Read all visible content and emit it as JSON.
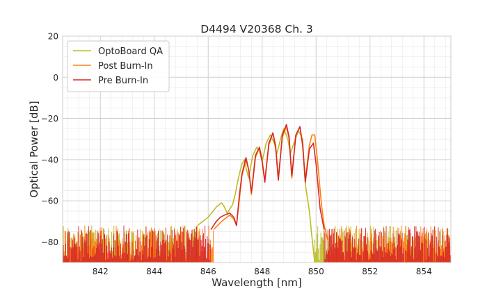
{
  "chart_data": {
    "type": "line",
    "title": "D4494 V20368 Ch. 3",
    "xlabel": "Wavelength [nm]",
    "ylabel": "Optical Power [dB]",
    "xlim": [
      840.6,
      855.0
    ],
    "ylim": [
      -90,
      20
    ],
    "xticks": [
      842,
      844,
      846,
      848,
      850,
      852,
      854
    ],
    "yticks": [
      20,
      0,
      -20,
      -40,
      -60,
      -80
    ],
    "minor_x_step": 0.4,
    "minor_y_step": 5,
    "grid": true,
    "legend_position": "top-left",
    "noise_floor": [
      -90,
      -72
    ],
    "series": [
      {
        "name": "OptoBoard QA",
        "color": "#bcbd22",
        "x": [
          845.6,
          846.0,
          846.3,
          846.5,
          846.6,
          846.7,
          846.9,
          847.0,
          847.1,
          847.25,
          847.35,
          847.4,
          847.5,
          847.65,
          847.8,
          847.9,
          848.0,
          848.15,
          848.3,
          848.45,
          848.55,
          848.7,
          848.8,
          848.95,
          849.05,
          849.2,
          849.35,
          849.5,
          849.6,
          849.75,
          849.85,
          849.95
        ],
        "y": [
          -72,
          -68,
          -63,
          -61,
          -63,
          -66,
          -62,
          -57,
          -50,
          -42,
          -40,
          -44,
          -49,
          -38,
          -34,
          -36,
          -41,
          -32,
          -28,
          -32,
          -37,
          -29,
          -25,
          -30,
          -37,
          -31,
          -26,
          -30,
          -52,
          -65,
          -78,
          -90
        ]
      },
      {
        "name": "Post Burn-In",
        "color": "#ff7f0e",
        "x": [
          846.2,
          846.5,
          846.8,
          846.95,
          847.05,
          847.15,
          847.25,
          847.4,
          847.5,
          847.6,
          847.75,
          847.9,
          848.0,
          848.1,
          848.25,
          848.4,
          848.5,
          848.6,
          848.75,
          848.9,
          849.0,
          849.1,
          849.25,
          849.4,
          849.5,
          849.6,
          849.75,
          849.85,
          849.95,
          850.05,
          850.2,
          850.3,
          850.45
        ],
        "y": [
          -74,
          -70,
          -67,
          -69,
          -72,
          -60,
          -48,
          -40,
          -45,
          -57,
          -39,
          -34,
          -40,
          -50,
          -33,
          -27,
          -33,
          -49,
          -29,
          -24,
          -30,
          -49,
          -28,
          -24,
          -32,
          -50,
          -33,
          -28,
          -28,
          -40,
          -62,
          -72,
          -80
        ]
      },
      {
        "name": "Pre Burn-In",
        "color": "#d62728",
        "x": [
          846.1,
          846.3,
          846.45,
          846.6,
          846.8,
          846.95,
          847.05,
          847.15,
          847.25,
          847.4,
          847.5,
          847.6,
          847.75,
          847.9,
          848.0,
          848.1,
          848.25,
          848.4,
          848.5,
          848.6,
          848.75,
          848.9,
          849.0,
          849.1,
          849.25,
          849.4,
          849.5,
          849.6,
          849.75,
          849.9,
          850.0,
          850.15,
          850.3
        ],
        "y": [
          -74,
          -70,
          -68,
          -67,
          -66,
          -68,
          -72,
          -58,
          -47,
          -39,
          -45,
          -56,
          -38,
          -34,
          -41,
          -51,
          -32,
          -27,
          -34,
          -50,
          -28,
          -23,
          -29,
          -48,
          -28,
          -24,
          -33,
          -51,
          -35,
          -32,
          -42,
          -64,
          -74
        ]
      }
    ]
  }
}
